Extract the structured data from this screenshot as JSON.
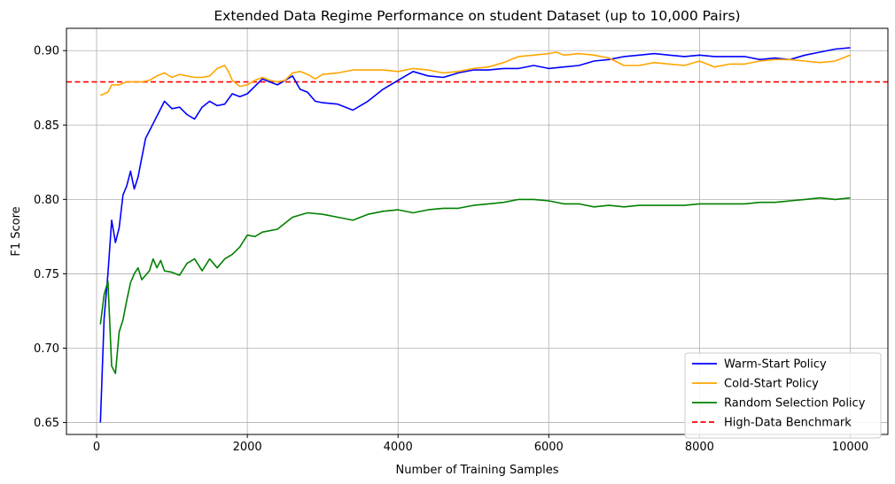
{
  "chart_data": {
    "type": "line",
    "title": "Extended Data Regime Performance on student Dataset (up to 10,000 Pairs)",
    "xlabel": "Number of Training Samples",
    "ylabel": "F1 Score",
    "xlim": [
      -400,
      10500
    ],
    "ylim": [
      0.642,
      0.915
    ],
    "xticks": [
      0,
      2000,
      4000,
      6000,
      8000,
      10000
    ],
    "yticks": [
      0.65,
      0.7,
      0.75,
      0.8,
      0.85,
      0.9
    ],
    "xtick_labels": [
      "0",
      "2000",
      "4000",
      "6000",
      "8000",
      "10000"
    ],
    "ytick_labels": [
      "0.65",
      "0.70",
      "0.75",
      "0.80",
      "0.85",
      "0.90"
    ],
    "grid": true,
    "legend_position": "lower-right",
    "benchmark": {
      "name": "High-Data Benchmark",
      "y": 0.879,
      "color": "#ff0000",
      "style": "dashed"
    },
    "series": [
      {
        "name": "Warm-Start Policy",
        "color": "#0000ff",
        "x": [
          50,
          100,
          150,
          200,
          250,
          300,
          350,
          400,
          450,
          500,
          550,
          600,
          650,
          700,
          800,
          900,
          1000,
          1100,
          1200,
          1300,
          1400,
          1500,
          1600,
          1700,
          1800,
          1900,
          2000,
          2200,
          2400,
          2600,
          2700,
          2800,
          2900,
          3000,
          3200,
          3400,
          3500,
          3600,
          3800,
          4000,
          4200,
          4400,
          4600,
          4800,
          5000,
          5200,
          5400,
          5600,
          5800,
          6000,
          6200,
          6400,
          6600,
          6800,
          7000,
          7200,
          7400,
          7600,
          7800,
          8000,
          8200,
          8400,
          8600,
          8800,
          9000,
          9200,
          9400,
          9600,
          9800,
          10000
        ],
        "y": [
          0.65,
          0.72,
          0.75,
          0.786,
          0.771,
          0.781,
          0.803,
          0.809,
          0.819,
          0.807,
          0.815,
          0.828,
          0.841,
          0.846,
          0.856,
          0.866,
          0.861,
          0.862,
          0.857,
          0.854,
          0.862,
          0.866,
          0.863,
          0.864,
          0.871,
          0.869,
          0.871,
          0.881,
          0.877,
          0.883,
          0.874,
          0.872,
          0.866,
          0.865,
          0.864,
          0.86,
          0.863,
          0.866,
          0.874,
          0.88,
          0.886,
          0.883,
          0.882,
          0.885,
          0.887,
          0.887,
          0.888,
          0.888,
          0.89,
          0.888,
          0.889,
          0.89,
          0.893,
          0.894,
          0.896,
          0.897,
          0.898,
          0.897,
          0.896,
          0.897,
          0.896,
          0.896,
          0.896,
          0.894,
          0.895,
          0.894,
          0.897,
          0.899,
          0.901,
          0.902
        ]
      },
      {
        "name": "Cold-Start Policy",
        "color": "#ffa500",
        "x": [
          50,
          150,
          200,
          300,
          400,
          500,
          600,
          700,
          800,
          900,
          1000,
          1100,
          1200,
          1300,
          1400,
          1500,
          1600,
          1700,
          1750,
          1800,
          1900,
          2000,
          2100,
          2200,
          2300,
          2400,
          2500,
          2600,
          2700,
          2800,
          2900,
          3000,
          3200,
          3400,
          3600,
          3800,
          4000,
          4200,
          4400,
          4600,
          4800,
          5000,
          5200,
          5400,
          5600,
          5800,
          6000,
          6100,
          6200,
          6400,
          6600,
          6800,
          7000,
          7200,
          7400,
          7600,
          7800,
          8000,
          8200,
          8400,
          8600,
          8800,
          9000,
          9200,
          9400,
          9600,
          9800,
          10000
        ],
        "y": [
          0.87,
          0.872,
          0.877,
          0.877,
          0.879,
          0.879,
          0.879,
          0.88,
          0.883,
          0.885,
          0.882,
          0.884,
          0.883,
          0.882,
          0.882,
          0.883,
          0.888,
          0.89,
          0.886,
          0.88,
          0.876,
          0.877,
          0.88,
          0.882,
          0.88,
          0.879,
          0.88,
          0.885,
          0.886,
          0.884,
          0.881,
          0.884,
          0.885,
          0.887,
          0.887,
          0.887,
          0.886,
          0.888,
          0.887,
          0.885,
          0.886,
          0.888,
          0.889,
          0.892,
          0.896,
          0.897,
          0.898,
          0.899,
          0.897,
          0.898,
          0.897,
          0.895,
          0.89,
          0.89,
          0.892,
          0.891,
          0.89,
          0.893,
          0.889,
          0.891,
          0.891,
          0.893,
          0.894,
          0.894,
          0.893,
          0.892,
          0.893,
          0.897
        ]
      },
      {
        "name": "Random Selection Policy",
        "color": "#008000",
        "x": [
          50,
          100,
          150,
          200,
          250,
          300,
          350,
          400,
          450,
          500,
          550,
          600,
          700,
          750,
          800,
          850,
          900,
          1000,
          1100,
          1200,
          1300,
          1400,
          1500,
          1600,
          1700,
          1800,
          1900,
          2000,
          2100,
          2200,
          2400,
          2600,
          2800,
          3000,
          3200,
          3400,
          3600,
          3800,
          4000,
          4200,
          4400,
          4600,
          4800,
          5000,
          5200,
          5400,
          5600,
          5800,
          6000,
          6200,
          6400,
          6600,
          6800,
          7000,
          7200,
          7400,
          7600,
          7800,
          8000,
          8200,
          8400,
          8600,
          8800,
          9000,
          9200,
          9400,
          9600,
          9800,
          10000
        ],
        "y": [
          0.716,
          0.736,
          0.745,
          0.688,
          0.683,
          0.711,
          0.719,
          0.732,
          0.744,
          0.75,
          0.754,
          0.746,
          0.752,
          0.76,
          0.754,
          0.759,
          0.752,
          0.751,
          0.749,
          0.757,
          0.76,
          0.752,
          0.76,
          0.754,
          0.76,
          0.763,
          0.768,
          0.776,
          0.775,
          0.778,
          0.78,
          0.788,
          0.791,
          0.79,
          0.788,
          0.786,
          0.79,
          0.792,
          0.793,
          0.791,
          0.793,
          0.794,
          0.794,
          0.796,
          0.797,
          0.798,
          0.8,
          0.8,
          0.799,
          0.797,
          0.797,
          0.795,
          0.796,
          0.795,
          0.796,
          0.796,
          0.796,
          0.796,
          0.797,
          0.797,
          0.797,
          0.797,
          0.798,
          0.798,
          0.799,
          0.8,
          0.801,
          0.8,
          0.801
        ]
      }
    ]
  }
}
